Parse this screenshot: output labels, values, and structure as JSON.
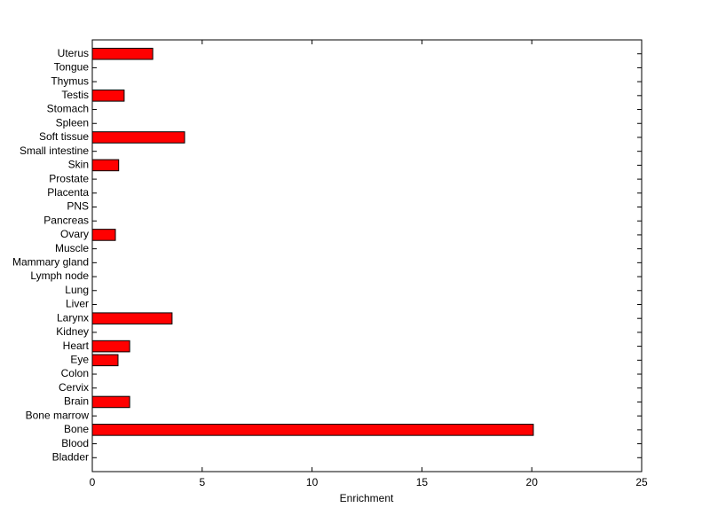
{
  "chart_data": {
    "type": "barh",
    "xlabel": "Enrichment",
    "categories": [
      "Bladder",
      "Blood",
      "Bone",
      "Bone marrow",
      "Brain",
      "Cervix",
      "Colon",
      "Eye",
      "Heart",
      "Kidney",
      "Larynx",
      "Liver",
      "Lung",
      "Lymph node",
      "Mammary gland",
      "Muscle",
      "Ovary",
      "Pancreas",
      "PNS",
      "Placenta",
      "Prostate",
      "Skin",
      "Small intestine",
      "Soft tissue",
      "Spleen",
      "Stomach",
      "Testis",
      "Thymus",
      "Tongue",
      "Uterus"
    ],
    "values": [
      0,
      0,
      20.07,
      0,
      1.7,
      0,
      0,
      1.17,
      1.7,
      0,
      3.63,
      0,
      0,
      0,
      0,
      0,
      1.05,
      0,
      0,
      0,
      0,
      1.2,
      0,
      4.2,
      0,
      0,
      1.45,
      0,
      0,
      2.75
    ],
    "color": "#ff0000",
    "xlim": [
      0,
      25
    ],
    "xticks": [
      0,
      5,
      10,
      15,
      20,
      25
    ],
    "grid": false
  }
}
